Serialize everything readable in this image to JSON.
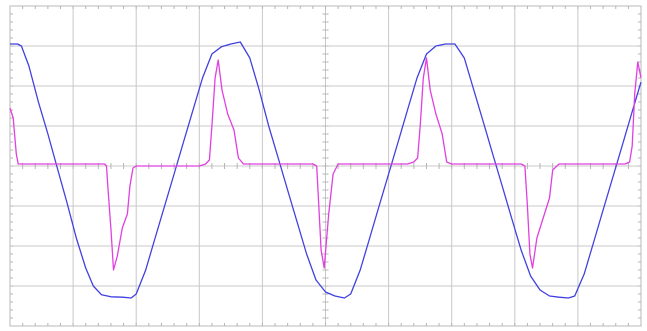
{
  "chart_data": {
    "type": "line",
    "title": "",
    "xlabel": "",
    "ylabel": "",
    "x_divisions": 10,
    "y_divisions": 8,
    "xlim": [
      0,
      10
    ],
    "ylim": [
      -4,
      4
    ],
    "grid": true,
    "legend": "none",
    "series": [
      {
        "color": "#4040e0",
        "points": [
          [
            0.0,
            3.05
          ],
          [
            0.12,
            3.05
          ],
          [
            0.18,
            3.0
          ],
          [
            0.3,
            2.5
          ],
          [
            0.45,
            1.6
          ],
          [
            0.6,
            0.8
          ],
          [
            0.75,
            -0.05
          ],
          [
            0.9,
            -0.9
          ],
          [
            1.05,
            -1.8
          ],
          [
            1.2,
            -2.55
          ],
          [
            1.32,
            -3.0
          ],
          [
            1.45,
            -3.22
          ],
          [
            1.6,
            -3.27
          ],
          [
            1.78,
            -3.28
          ],
          [
            1.92,
            -3.3
          ],
          [
            2.0,
            -3.2
          ],
          [
            2.15,
            -2.6
          ],
          [
            2.3,
            -1.8
          ],
          [
            2.45,
            -1.0
          ],
          [
            2.6,
            -0.2
          ],
          [
            2.75,
            0.6
          ],
          [
            2.9,
            1.4
          ],
          [
            3.05,
            2.2
          ],
          [
            3.2,
            2.8
          ],
          [
            3.35,
            2.98
          ],
          [
            3.5,
            3.05
          ],
          [
            3.65,
            3.1
          ],
          [
            3.8,
            2.7
          ],
          [
            3.95,
            1.9
          ],
          [
            4.1,
            1.0
          ],
          [
            4.25,
            0.2
          ],
          [
            4.4,
            -0.6
          ],
          [
            4.55,
            -1.4
          ],
          [
            4.7,
            -2.2
          ],
          [
            4.85,
            -2.85
          ],
          [
            5.0,
            -3.15
          ],
          [
            5.15,
            -3.25
          ],
          [
            5.3,
            -3.3
          ],
          [
            5.4,
            -3.2
          ],
          [
            5.55,
            -2.6
          ],
          [
            5.7,
            -1.8
          ],
          [
            5.85,
            -1.0
          ],
          [
            6.0,
            -0.2
          ],
          [
            6.15,
            0.6
          ],
          [
            6.3,
            1.4
          ],
          [
            6.45,
            2.2
          ],
          [
            6.6,
            2.8
          ],
          [
            6.75,
            3.0
          ],
          [
            6.9,
            3.05
          ],
          [
            7.05,
            3.05
          ],
          [
            7.2,
            2.7
          ],
          [
            7.35,
            1.9
          ],
          [
            7.5,
            1.1
          ],
          [
            7.65,
            0.3
          ],
          [
            7.8,
            -0.5
          ],
          [
            7.95,
            -1.3
          ],
          [
            8.1,
            -2.1
          ],
          [
            8.25,
            -2.75
          ],
          [
            8.4,
            -3.1
          ],
          [
            8.55,
            -3.25
          ],
          [
            8.7,
            -3.28
          ],
          [
            8.85,
            -3.3
          ],
          [
            8.95,
            -3.25
          ],
          [
            9.1,
            -2.7
          ],
          [
            9.25,
            -1.9
          ],
          [
            9.4,
            -1.1
          ],
          [
            9.55,
            -0.3
          ],
          [
            9.7,
            0.5
          ],
          [
            9.85,
            1.3
          ],
          [
            10.0,
            2.1
          ]
        ]
      },
      {
        "color": "#e040e0",
        "points": [
          [
            0.0,
            1.45
          ],
          [
            0.05,
            1.2
          ],
          [
            0.1,
            0.3
          ],
          [
            0.13,
            0.05
          ],
          [
            0.16,
            0.05
          ],
          [
            1.5,
            0.05
          ],
          [
            1.53,
            0.0
          ],
          [
            1.55,
            -0.5
          ],
          [
            1.6,
            -1.6
          ],
          [
            1.64,
            -2.6
          ],
          [
            1.7,
            -2.25
          ],
          [
            1.78,
            -1.55
          ],
          [
            1.86,
            -1.2
          ],
          [
            1.9,
            -0.5
          ],
          [
            1.95,
            -0.05
          ],
          [
            2.0,
            0.0
          ],
          [
            3.0,
            0.0
          ],
          [
            3.1,
            0.05
          ],
          [
            3.16,
            0.15
          ],
          [
            3.2,
            1.0
          ],
          [
            3.25,
            2.2
          ],
          [
            3.3,
            2.65
          ],
          [
            3.36,
            1.9
          ],
          [
            3.45,
            1.3
          ],
          [
            3.55,
            0.9
          ],
          [
            3.62,
            0.2
          ],
          [
            3.7,
            0.05
          ],
          [
            4.8,
            0.05
          ],
          [
            4.86,
            0.0
          ],
          [
            4.89,
            -0.9
          ],
          [
            4.93,
            -2.1
          ],
          [
            4.98,
            -2.55
          ],
          [
            5.05,
            -1.2
          ],
          [
            5.12,
            -0.2
          ],
          [
            5.2,
            0.05
          ],
          [
            6.3,
            0.05
          ],
          [
            6.4,
            0.1
          ],
          [
            6.46,
            0.2
          ],
          [
            6.5,
            1.0
          ],
          [
            6.55,
            2.2
          ],
          [
            6.6,
            2.7
          ],
          [
            6.66,
            1.9
          ],
          [
            6.75,
            1.3
          ],
          [
            6.85,
            0.8
          ],
          [
            6.92,
            0.1
          ],
          [
            7.0,
            0.05
          ],
          [
            8.1,
            0.05
          ],
          [
            8.16,
            0.0
          ],
          [
            8.2,
            -1.0
          ],
          [
            8.24,
            -2.2
          ],
          [
            8.28,
            -2.55
          ],
          [
            8.35,
            -1.8
          ],
          [
            8.45,
            -1.3
          ],
          [
            8.55,
            -0.8
          ],
          [
            8.6,
            -0.1
          ],
          [
            8.7,
            0.05
          ],
          [
            9.75,
            0.05
          ],
          [
            9.82,
            0.1
          ],
          [
            9.86,
            0.5
          ],
          [
            9.9,
            1.8
          ],
          [
            9.95,
            2.6
          ],
          [
            10.0,
            2.2
          ]
        ]
      }
    ]
  }
}
